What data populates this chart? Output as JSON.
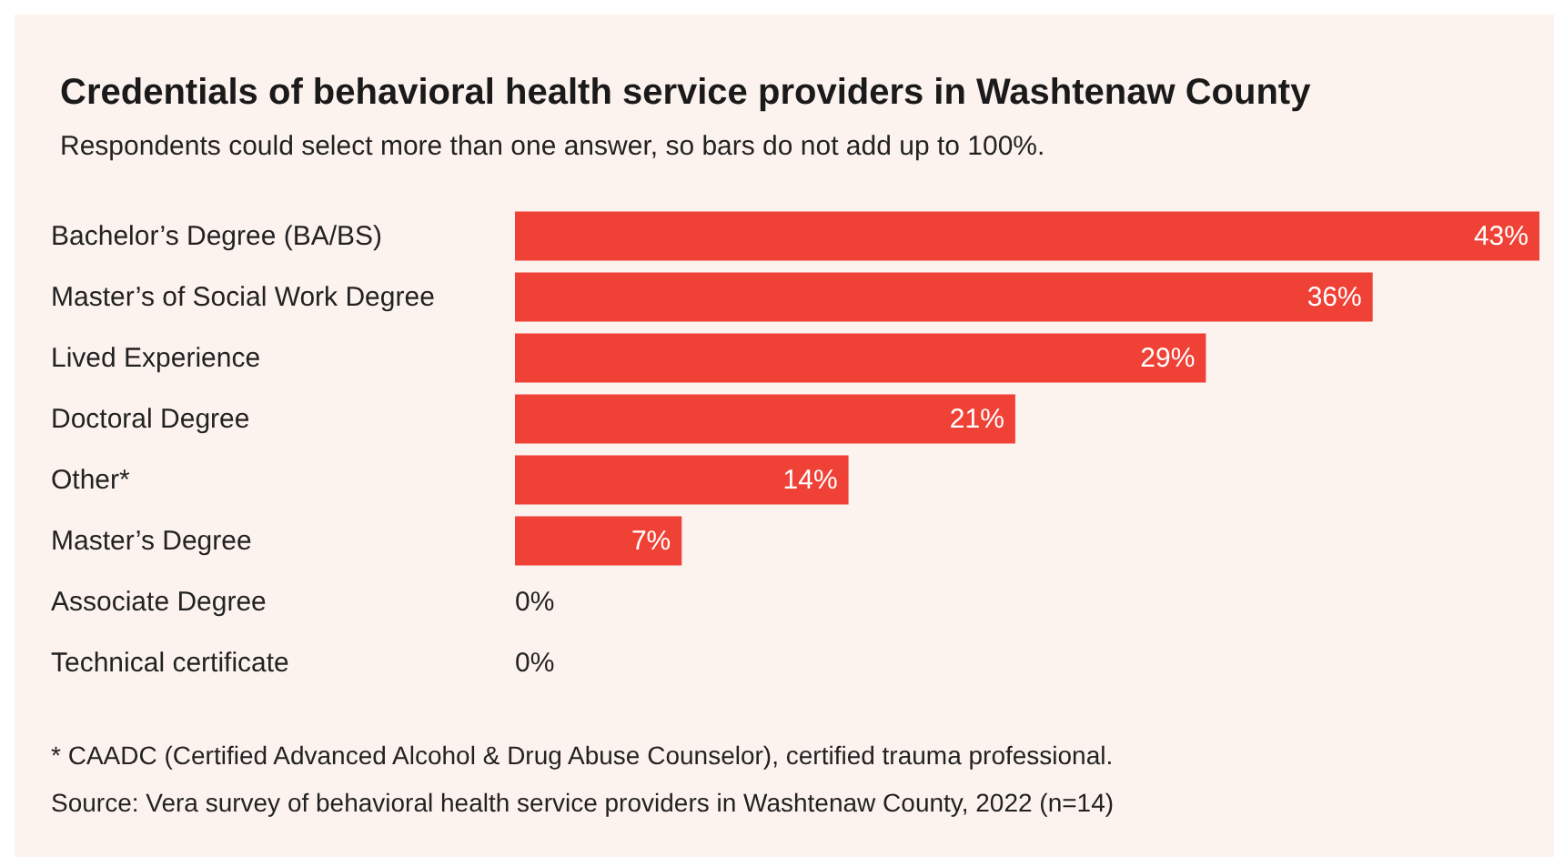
{
  "chart_data": {
    "type": "bar",
    "orientation": "horizontal",
    "title": "Credentials of behavioral health service providers in Washtenaw County",
    "subtitle": "Respondents could select more than one answer, so bars do not add up to 100%.",
    "categories": [
      "Bachelor’s Degree (BA/BS)",
      "Master’s of Social Work Degree",
      "Lived Experience",
      "Doctoral Degree",
      "Other*",
      "Master’s Degree",
      "Associate Degree",
      "Technical certificate"
    ],
    "values": [
      43,
      36,
      29,
      21,
      14,
      7,
      0,
      0
    ],
    "value_labels": [
      "43%",
      "36%",
      "29%",
      "21%",
      "14%",
      "7%",
      "0%",
      "0%"
    ],
    "color": "#ef4136",
    "annotations": [
      "* CAADC (Certified Advanced Alcohol & Drug Abuse Counselor), certified trauma professional.",
      "Source: Vera survey of behavioral health service providers in Washtenaw County, 2022 (n=14)"
    ]
  }
}
